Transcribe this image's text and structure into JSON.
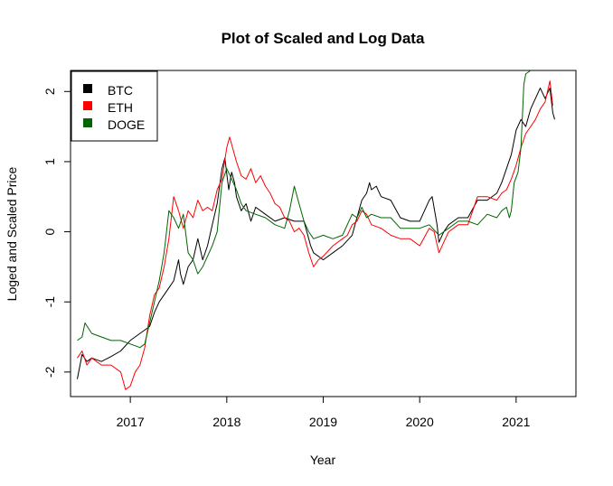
{
  "chart_data": {
    "type": "line",
    "title": "Plot of Scaled and Log Data",
    "xlabel": "Year",
    "ylabel": "Loged and Scaled Price",
    "xlim": [
      2016.38,
      2021.62
    ],
    "ylim": [
      -2.35,
      2.3
    ],
    "x_ticks": [
      2017,
      2018,
      2019,
      2020,
      2021
    ],
    "x_tick_labels": [
      "2017",
      "2018",
      "2019",
      "2020",
      "2021"
    ],
    "y_ticks": [
      -2,
      -1,
      0,
      1,
      2
    ],
    "y_tick_labels": [
      "-2",
      "-1",
      "0",
      "1",
      "2"
    ],
    "grid": false,
    "legend_position": "top-left",
    "series": [
      {
        "name": "BTC",
        "color": "#000000",
        "points": [
          [
            2016.45,
            -2.1
          ],
          [
            2016.5,
            -1.75
          ],
          [
            2016.55,
            -1.85
          ],
          [
            2016.6,
            -1.8
          ],
          [
            2016.7,
            -1.85
          ],
          [
            2016.8,
            -1.78
          ],
          [
            2016.9,
            -1.7
          ],
          [
            2017.0,
            -1.55
          ],
          [
            2017.1,
            -1.45
          ],
          [
            2017.2,
            -1.35
          ],
          [
            2017.25,
            -1.15
          ],
          [
            2017.3,
            -1.0
          ],
          [
            2017.4,
            -0.8
          ],
          [
            2017.45,
            -0.7
          ],
          [
            2017.5,
            -0.4
          ],
          [
            2017.52,
            -0.6
          ],
          [
            2017.55,
            -0.75
          ],
          [
            2017.6,
            -0.5
          ],
          [
            2017.65,
            -0.4
          ],
          [
            2017.7,
            -0.1
          ],
          [
            2017.75,
            -0.4
          ],
          [
            2017.8,
            -0.2
          ],
          [
            2017.85,
            0.1
          ],
          [
            2017.9,
            0.4
          ],
          [
            2017.95,
            0.9
          ],
          [
            2017.98,
            1.05
          ],
          [
            2018.02,
            0.6
          ],
          [
            2018.05,
            0.85
          ],
          [
            2018.08,
            0.7
          ],
          [
            2018.1,
            0.5
          ],
          [
            2018.15,
            0.3
          ],
          [
            2018.2,
            0.4
          ],
          [
            2018.25,
            0.15
          ],
          [
            2018.3,
            0.35
          ],
          [
            2018.4,
            0.25
          ],
          [
            2018.5,
            0.15
          ],
          [
            2018.6,
            0.2
          ],
          [
            2018.7,
            0.15
          ],
          [
            2018.8,
            0.15
          ],
          [
            2018.87,
            -0.2
          ],
          [
            2018.9,
            -0.3
          ],
          [
            2019.0,
            -0.4
          ],
          [
            2019.1,
            -0.3
          ],
          [
            2019.2,
            -0.2
          ],
          [
            2019.3,
            -0.05
          ],
          [
            2019.35,
            0.2
          ],
          [
            2019.4,
            0.45
          ],
          [
            2019.45,
            0.55
          ],
          [
            2019.48,
            0.7
          ],
          [
            2019.5,
            0.6
          ],
          [
            2019.55,
            0.65
          ],
          [
            2019.6,
            0.5
          ],
          [
            2019.7,
            0.45
          ],
          [
            2019.8,
            0.2
          ],
          [
            2019.9,
            0.15
          ],
          [
            2020.0,
            0.15
          ],
          [
            2020.1,
            0.45
          ],
          [
            2020.13,
            0.5
          ],
          [
            2020.18,
            0.1
          ],
          [
            2020.2,
            -0.15
          ],
          [
            2020.25,
            0.0
          ],
          [
            2020.3,
            0.1
          ],
          [
            2020.4,
            0.2
          ],
          [
            2020.5,
            0.2
          ],
          [
            2020.6,
            0.45
          ],
          [
            2020.7,
            0.45
          ],
          [
            2020.8,
            0.55
          ],
          [
            2020.85,
            0.7
          ],
          [
            2020.9,
            0.9
          ],
          [
            2020.95,
            1.1
          ],
          [
            2021.0,
            1.45
          ],
          [
            2021.05,
            1.6
          ],
          [
            2021.1,
            1.5
          ],
          [
            2021.15,
            1.75
          ],
          [
            2021.2,
            1.9
          ],
          [
            2021.25,
            2.05
          ],
          [
            2021.3,
            1.9
          ],
          [
            2021.35,
            2.05
          ],
          [
            2021.38,
            1.7
          ],
          [
            2021.4,
            1.6
          ]
        ]
      },
      {
        "name": "ETH",
        "color": "#ff0000",
        "points": [
          [
            2016.45,
            -1.8
          ],
          [
            2016.5,
            -1.7
          ],
          [
            2016.55,
            -1.9
          ],
          [
            2016.6,
            -1.8
          ],
          [
            2016.7,
            -1.9
          ],
          [
            2016.8,
            -1.9
          ],
          [
            2016.9,
            -2.0
          ],
          [
            2016.95,
            -2.25
          ],
          [
            2017.0,
            -2.2
          ],
          [
            2017.05,
            -2.0
          ],
          [
            2017.1,
            -1.9
          ],
          [
            2017.15,
            -1.65
          ],
          [
            2017.2,
            -1.2
          ],
          [
            2017.25,
            -0.9
          ],
          [
            2017.3,
            -0.8
          ],
          [
            2017.35,
            -0.5
          ],
          [
            2017.4,
            -0.1
          ],
          [
            2017.45,
            0.5
          ],
          [
            2017.5,
            0.3
          ],
          [
            2017.55,
            0.05
          ],
          [
            2017.6,
            0.3
          ],
          [
            2017.65,
            0.2
          ],
          [
            2017.7,
            0.45
          ],
          [
            2017.75,
            0.3
          ],
          [
            2017.8,
            0.35
          ],
          [
            2017.85,
            0.3
          ],
          [
            2017.9,
            0.6
          ],
          [
            2017.95,
            0.75
          ],
          [
            2018.0,
            1.2
          ],
          [
            2018.03,
            1.35
          ],
          [
            2018.06,
            1.2
          ],
          [
            2018.1,
            1.0
          ],
          [
            2018.15,
            0.8
          ],
          [
            2018.2,
            0.75
          ],
          [
            2018.25,
            0.9
          ],
          [
            2018.3,
            0.7
          ],
          [
            2018.35,
            0.8
          ],
          [
            2018.4,
            0.65
          ],
          [
            2018.45,
            0.55
          ],
          [
            2018.5,
            0.4
          ],
          [
            2018.55,
            0.35
          ],
          [
            2018.6,
            0.2
          ],
          [
            2018.65,
            0.15
          ],
          [
            2018.7,
            0.0
          ],
          [
            2018.75,
            0.05
          ],
          [
            2018.8,
            -0.05
          ],
          [
            2018.85,
            -0.3
          ],
          [
            2018.9,
            -0.5
          ],
          [
            2018.95,
            -0.4
          ],
          [
            2019.0,
            -0.35
          ],
          [
            2019.1,
            -0.2
          ],
          [
            2019.2,
            -0.1
          ],
          [
            2019.25,
            -0.05
          ],
          [
            2019.3,
            0.1
          ],
          [
            2019.35,
            0.15
          ],
          [
            2019.4,
            0.3
          ],
          [
            2019.45,
            0.25
          ],
          [
            2019.5,
            0.1
          ],
          [
            2019.6,
            0.05
          ],
          [
            2019.7,
            -0.05
          ],
          [
            2019.8,
            -0.1
          ],
          [
            2019.9,
            -0.1
          ],
          [
            2020.0,
            -0.2
          ],
          [
            2020.1,
            0.05
          ],
          [
            2020.15,
            0.0
          ],
          [
            2020.2,
            -0.3
          ],
          [
            2020.25,
            -0.15
          ],
          [
            2020.3,
            0.0
          ],
          [
            2020.4,
            0.1
          ],
          [
            2020.5,
            0.1
          ],
          [
            2020.6,
            0.5
          ],
          [
            2020.7,
            0.5
          ],
          [
            2020.8,
            0.45
          ],
          [
            2020.85,
            0.55
          ],
          [
            2020.9,
            0.6
          ],
          [
            2020.95,
            0.75
          ],
          [
            2021.0,
            0.95
          ],
          [
            2021.05,
            1.2
          ],
          [
            2021.1,
            1.4
          ],
          [
            2021.15,
            1.5
          ],
          [
            2021.2,
            1.6
          ],
          [
            2021.25,
            1.75
          ],
          [
            2021.3,
            1.85
          ],
          [
            2021.35,
            2.15
          ],
          [
            2021.38,
            1.8
          ]
        ]
      },
      {
        "name": "DOGE",
        "color": "#006400",
        "points": [
          [
            2016.45,
            -1.55
          ],
          [
            2016.5,
            -1.5
          ],
          [
            2016.53,
            -1.3
          ],
          [
            2016.6,
            -1.45
          ],
          [
            2016.7,
            -1.5
          ],
          [
            2016.8,
            -1.55
          ],
          [
            2016.9,
            -1.55
          ],
          [
            2017.0,
            -1.6
          ],
          [
            2017.1,
            -1.65
          ],
          [
            2017.15,
            -1.6
          ],
          [
            2017.2,
            -1.3
          ],
          [
            2017.25,
            -1.0
          ],
          [
            2017.3,
            -0.7
          ],
          [
            2017.35,
            -0.3
          ],
          [
            2017.4,
            0.3
          ],
          [
            2017.45,
            0.2
          ],
          [
            2017.5,
            0.05
          ],
          [
            2017.55,
            0.25
          ],
          [
            2017.6,
            -0.3
          ],
          [
            2017.65,
            -0.4
          ],
          [
            2017.7,
            -0.6
          ],
          [
            2017.75,
            -0.5
          ],
          [
            2017.8,
            -0.35
          ],
          [
            2017.85,
            -0.2
          ],
          [
            2017.9,
            0.0
          ],
          [
            2017.95,
            0.7
          ],
          [
            2018.0,
            0.9
          ],
          [
            2018.05,
            0.75
          ],
          [
            2018.1,
            0.6
          ],
          [
            2018.15,
            0.4
          ],
          [
            2018.2,
            0.3
          ],
          [
            2018.3,
            0.25
          ],
          [
            2018.4,
            0.2
          ],
          [
            2018.5,
            0.1
          ],
          [
            2018.6,
            0.05
          ],
          [
            2018.65,
            0.3
          ],
          [
            2018.7,
            0.65
          ],
          [
            2018.75,
            0.4
          ],
          [
            2018.8,
            0.15
          ],
          [
            2018.85,
            0.0
          ],
          [
            2018.9,
            -0.1
          ],
          [
            2019.0,
            -0.05
          ],
          [
            2019.1,
            -0.1
          ],
          [
            2019.2,
            -0.05
          ],
          [
            2019.3,
            0.25
          ],
          [
            2019.35,
            0.2
          ],
          [
            2019.4,
            0.35
          ],
          [
            2019.45,
            0.2
          ],
          [
            2019.5,
            0.25
          ],
          [
            2019.6,
            0.2
          ],
          [
            2019.7,
            0.2
          ],
          [
            2019.8,
            0.05
          ],
          [
            2019.9,
            0.05
          ],
          [
            2020.0,
            0.05
          ],
          [
            2020.1,
            0.1
          ],
          [
            2020.2,
            -0.05
          ],
          [
            2020.3,
            0.05
          ],
          [
            2020.4,
            0.15
          ],
          [
            2020.5,
            0.15
          ],
          [
            2020.6,
            0.1
          ],
          [
            2020.7,
            0.25
          ],
          [
            2020.8,
            0.2
          ],
          [
            2020.85,
            0.3
          ],
          [
            2020.9,
            0.35
          ],
          [
            2020.93,
            0.2
          ],
          [
            2020.95,
            0.3
          ],
          [
            2020.98,
            0.7
          ],
          [
            2021.02,
            0.85
          ],
          [
            2021.05,
            1.2
          ],
          [
            2021.08,
            2.1
          ],
          [
            2021.1,
            2.25
          ],
          [
            2021.15,
            2.3
          ]
        ]
      }
    ]
  }
}
